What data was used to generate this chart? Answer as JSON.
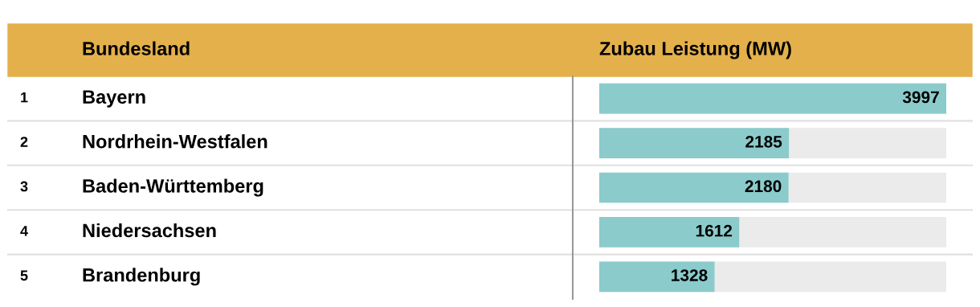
{
  "chart_data": {
    "type": "bar",
    "orientation": "horizontal",
    "ylabel": "Bundesland",
    "xlabel": "Zubau Leistung (MW)",
    "categories": [
      "Bayern",
      "Nordrhein-Westfalen",
      "Baden-Württemberg",
      "Niedersachsen",
      "Brandenburg"
    ],
    "values": [
      3997,
      2185,
      2180,
      1612,
      1328
    ],
    "color": "#8bcbcb",
    "data_labels": true,
    "annotations": [
      "1",
      "2",
      "3",
      "4",
      "5"
    ]
  }
}
